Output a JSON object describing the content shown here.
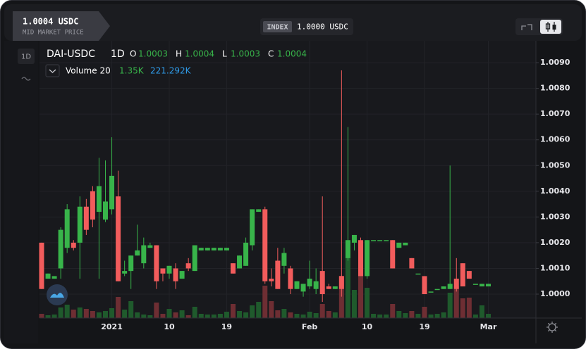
{
  "header": {
    "price": "1.0004 USDC",
    "price_caption": "MID MARKET PRICE",
    "index_tag": "INDEX",
    "index_price": "1.0000 USDC"
  },
  "toolbar": {
    "interval": "1D"
  },
  "chart_data": {
    "type": "candlestick",
    "legend": {
      "symbol": "DAI-USDC",
      "interval": "1D",
      "o_label": "O",
      "o": "1.0003",
      "h_label": "H",
      "h": "1.0004",
      "l_label": "L",
      "l": "1.0003",
      "c_label": "C",
      "c": "1.0004",
      "volume_label": "Volume 20",
      "volume_a": "1.35K",
      "volume_b": "221.292K"
    },
    "categories": [
      null,
      null,
      null,
      null,
      null,
      null,
      null,
      null,
      null,
      null,
      null,
      "2021",
      null,
      null,
      null,
      null,
      null,
      null,
      null,
      null,
      "10",
      null,
      null,
      null,
      null,
      null,
      null,
      null,
      null,
      "19",
      null,
      null,
      null,
      null,
      null,
      null,
      null,
      null,
      null,
      null,
      null,
      null,
      "Feb",
      null,
      null,
      null,
      null,
      null,
      null,
      null,
      null,
      "10",
      null,
      null,
      null,
      null,
      null,
      null,
      null,
      null,
      "19",
      null,
      null,
      null,
      null,
      null,
      null,
      null,
      null,
      null,
      "Mar"
    ],
    "series": [
      {
        "name": "DAI-USDC",
        "up_color": "#38b44a",
        "down_color": "#f25c5c",
        "open": [
          1.002,
          1.0006,
          1.0006,
          1.001,
          1.0018,
          1.002,
          1.002,
          1.0034,
          1.004,
          1.0032,
          1.0029,
          1.0033,
          1.0038,
          1.0008,
          1.0009,
          1.0015,
          1.0012,
          1.0018,
          1.0019,
          1.001,
          1.0008,
          1.001,
          1.0006,
          1.0012,
          1.0009,
          1.0017,
          1.0017,
          1.0017,
          1.0017,
          1.0017,
          1.0012,
          1.001,
          1.0011,
          1.0019,
          1.0032,
          1.0033,
          1.0006,
          1.0013,
          1.0011,
          1.001,
          1.0002,
          1.0001,
          1.0003,
          1.0002,
          1.0009,
          1.0003,
          1.0002,
          1.0007,
          1.0014,
          1.002,
          1.0021,
          1.0007,
          1.0021,
          1.0021,
          1.0021,
          1.0021,
          1.0018,
          1.0019,
          1.0014,
          1.0008,
          1.0007,
          1.0001,
          1.0002,
          1.0002,
          1.0002,
          1.0006,
          1.0012,
          1.0009,
          1.0004,
          1.0003,
          1.0003
        ],
        "high": [
          1.002,
          1.0008,
          1.0007,
          1.0026,
          1.0035,
          1.0021,
          1.0038,
          1.0037,
          1.0042,
          1.0053,
          1.0052,
          1.0061,
          1.0048,
          1.0013,
          1.0015,
          1.0027,
          1.0022,
          1.002,
          1.0019,
          1.001,
          1.0011,
          1.0012,
          1.0009,
          1.0014,
          1.0019,
          1.0018,
          1.0018,
          1.0018,
          1.0018,
          1.0018,
          1.0012,
          1.0015,
          1.0022,
          1.0033,
          1.0033,
          1.0034,
          1.001,
          1.0018,
          1.0018,
          1.0011,
          1.0005,
          1.0004,
          1.0013,
          1.001,
          1.0038,
          1.0004,
          1.0003,
          1.0087,
          1.0065,
          1.0023,
          1.0022,
          1.0021,
          1.0021,
          1.0021,
          1.0021,
          1.0021,
          1.002,
          1.002,
          1.0014,
          1.0008,
          1.0007,
          1.0001,
          1.0002,
          1.0003,
          1.005,
          1.0014,
          1.0012,
          1.0009,
          1.0004,
          1.0004,
          1.0004
        ],
        "low": [
          1.0002,
          1.0006,
          1.0006,
          1.0006,
          1.0016,
          1.0017,
          1.0006,
          1.0023,
          1.0026,
          1.0006,
          1.0028,
          1.0031,
          1.0005,
          1.0007,
          1.0002,
          1.0015,
          1.001,
          1.0018,
          1.0002,
          1.0005,
          1.0006,
          1.0002,
          1.0006,
          1.0009,
          1.0009,
          1.0017,
          1.0017,
          1.0017,
          1.0017,
          1.0017,
          1.0008,
          1.001,
          1.0011,
          1.0017,
          1.0032,
          1.0004,
          1.0003,
          1.0002,
          1.0008,
          1.0,
          1.0002,
          0.9999,
          1.0002,
          1.0,
          0.9997,
          1.0002,
          1.0002,
          0.9999,
          1.0013,
          1.0017,
          1.0007,
          1.0006,
          1.0021,
          1.0021,
          1.0021,
          1.001,
          1.0018,
          1.0019,
          1.001,
          1.0008,
          1.0,
          1.0001,
          1.0002,
          1.0002,
          1.0002,
          1.0001,
          1.0003,
          1.0006,
          1.0004,
          1.0003,
          1.0003
        ],
        "close": [
          1.0002,
          1.0008,
          1.0007,
          1.0025,
          1.0033,
          1.0018,
          1.0034,
          1.0025,
          1.0029,
          1.0042,
          1.0036,
          1.0046,
          1.0005,
          1.0009,
          1.0015,
          1.0017,
          1.0019,
          1.0019,
          1.0005,
          1.0008,
          1.0011,
          1.0005,
          1.0009,
          1.001,
          1.0019,
          1.0018,
          1.0018,
          1.0018,
          1.0018,
          1.0018,
          1.0008,
          1.0015,
          1.002,
          1.0033,
          1.0033,
          1.0005,
          1.0005,
          1.0002,
          1.0016,
          1.0002,
          1.0005,
          1.0004,
          1.0006,
          1.0005,
          1.0,
          1.0002,
          1.0003,
          1.0002,
          1.0021,
          1.0023,
          1.0007,
          1.0021,
          1.0021,
          1.0021,
          1.0021,
          1.001,
          1.002,
          1.002,
          1.001,
          1.0008,
          1.0,
          1.0001,
          1.0002,
          1.0003,
          1.0004,
          1.0002,
          1.0003,
          1.0006,
          1.0004,
          1.0004,
          1.0004
        ]
      }
    ],
    "volume": {
      "up_color": "#1f5a2c",
      "down_color": "#6e2e33",
      "vlim": [
        0,
        10
      ],
      "values": [
        0.6,
        0.4,
        0.5,
        1.5,
        1.9,
        1.2,
        1.5,
        1.3,
        1.0,
        0.8,
        1.0,
        1.4,
        3.0,
        1.2,
        2.4,
        0.8,
        0.5,
        0.4,
        2.2,
        0.6,
        1.3,
        0.8,
        1.1,
        0.4,
        1.6,
        0.6,
        0.5,
        0.5,
        0.6,
        0.9,
        2.0,
        1.0,
        0.8,
        1.8,
        2.3,
        4.6,
        2.4,
        1.1,
        1.3,
        0.8,
        0.6,
        0.5,
        0.9,
        0.7,
        2.0,
        1.0,
        0.8,
        6.0,
        8.7,
        4.0,
        6.2,
        4.3,
        0.6,
        0.5,
        0.5,
        2.0,
        1.0,
        0.7,
        1.0,
        0.6,
        1.6,
        0.5,
        0.6,
        0.8,
        3.6,
        4.5,
        2.8,
        2.9,
        0.5,
        1.8,
        0.6
      ]
    },
    "ylim": [
      0.99907,
      1.00985
    ],
    "yticks": [
      {
        "value": 1.009,
        "label": "1.0090"
      },
      {
        "value": 1.008,
        "label": "1.0080"
      },
      {
        "value": 1.007,
        "label": "1.0070"
      },
      {
        "value": 1.006,
        "label": "1.0060"
      },
      {
        "value": 1.005,
        "label": "1.0050"
      },
      {
        "value": 1.004,
        "label": "1.0040"
      },
      {
        "value": 1.003,
        "label": "1.0030"
      },
      {
        "value": 1.002,
        "label": "1.0020"
      },
      {
        "value": 1.001,
        "label": "1.0010"
      },
      {
        "value": 1.0,
        "label": "1.0000"
      }
    ],
    "grid": true
  }
}
